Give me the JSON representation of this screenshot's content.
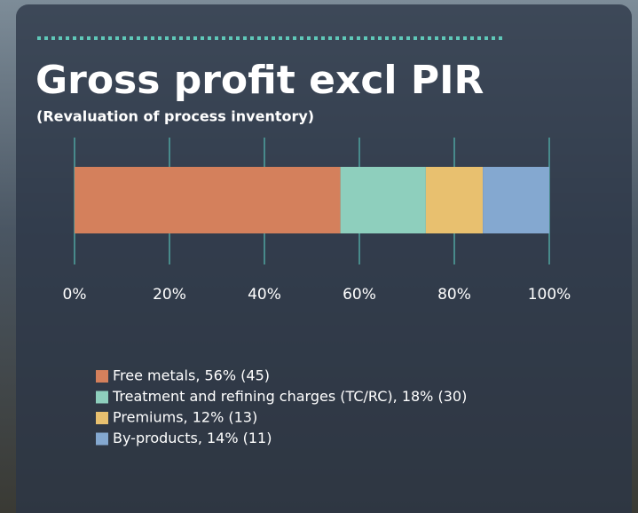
{
  "chart_data": {
    "type": "bar",
    "orientation": "horizontal",
    "stacked": true,
    "title": "Gross profit excl PIR",
    "subtitle": "(Revaluation of process inventory)",
    "series": [
      {
        "name": "Free metals, 56% (45)",
        "color": "#d4805c",
        "values": [
          56
        ]
      },
      {
        "name": "Treatment and refining charges (TC/RC), 18% (30)",
        "color": "#8ecfbd",
        "values": [
          18
        ]
      },
      {
        "name": "Premiums, 12% (13)",
        "color": "#e8c06f",
        "values": [
          12
        ]
      },
      {
        "name": "By-products, 14% (11)",
        "color": "#84a8d0",
        "values": [
          14
        ]
      }
    ],
    "xlim": [
      0,
      100
    ],
    "xticks": [
      {
        "value": 0,
        "label": "0%"
      },
      {
        "value": 20,
        "label": "20%"
      },
      {
        "value": 40,
        "label": "40%"
      },
      {
        "value": 60,
        "label": "60%"
      },
      {
        "value": 80,
        "label": "80%"
      },
      {
        "value": 100,
        "label": "100%"
      }
    ],
    "grid": true
  }
}
